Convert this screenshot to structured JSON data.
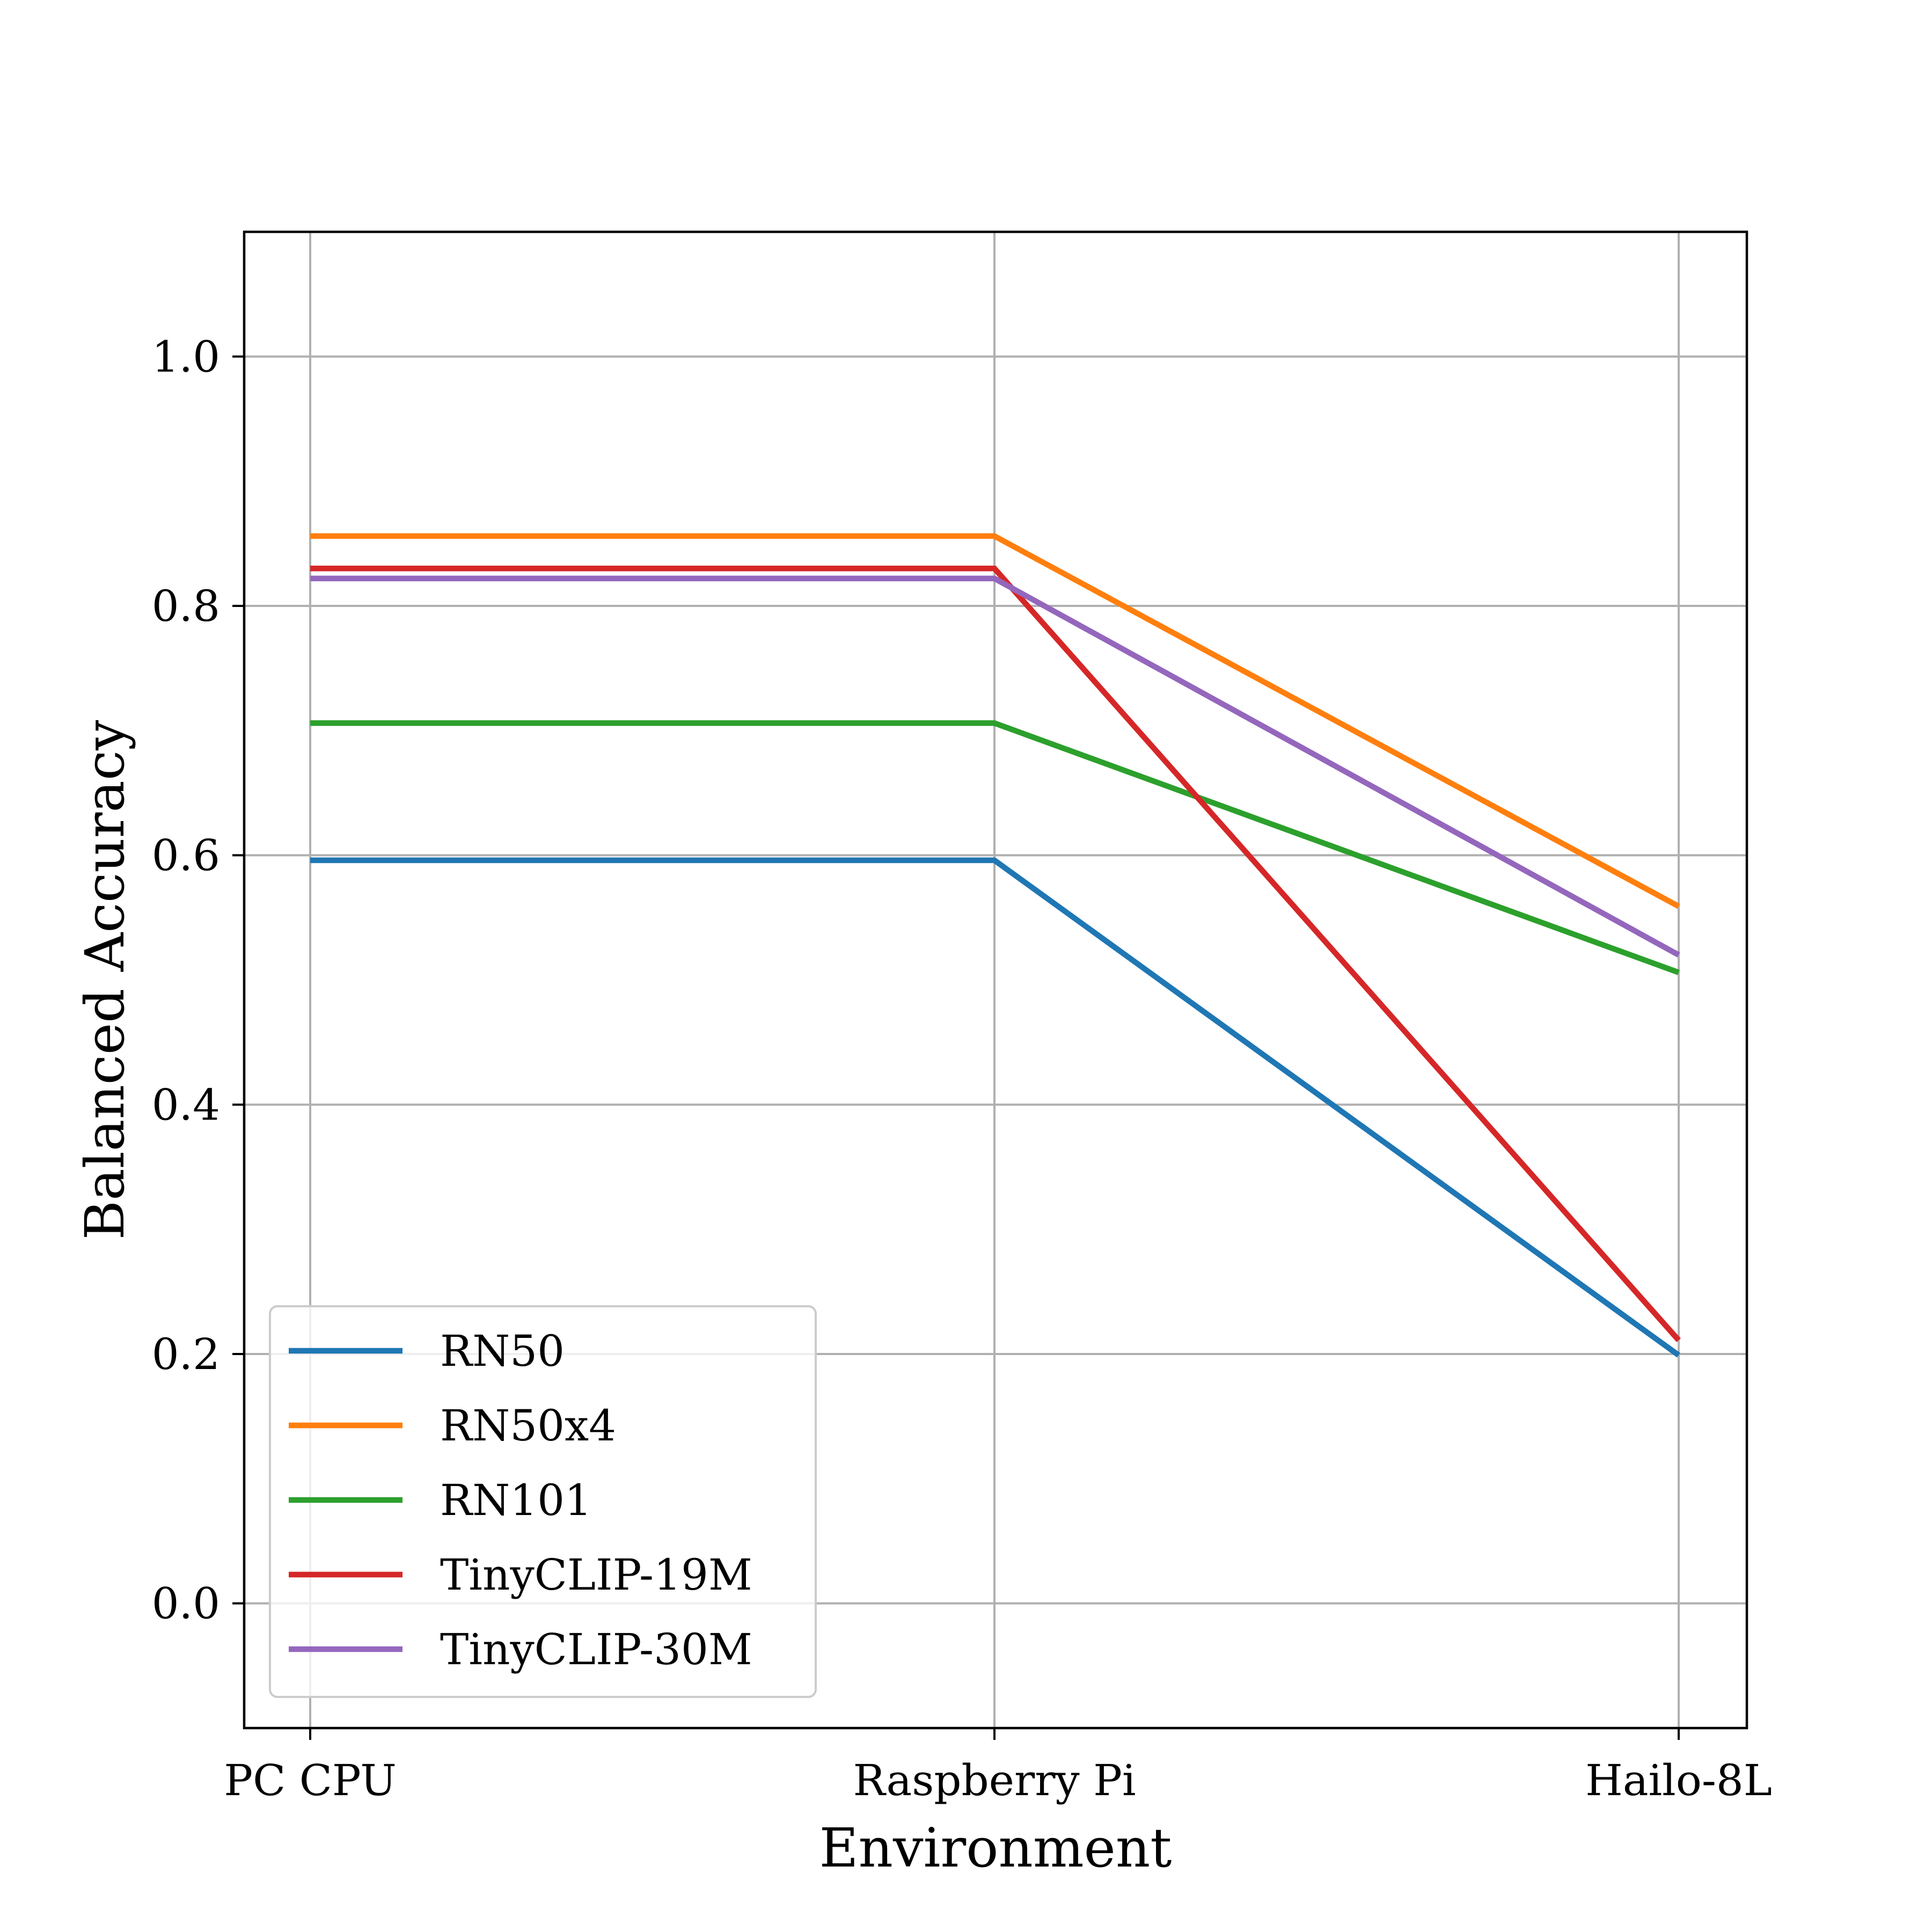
{
  "chart_data": {
    "type": "line",
    "title": "",
    "xlabel": "Environment",
    "ylabel": "Balanced Accuracy",
    "categories": [
      "PC CPU",
      "Raspberry Pi",
      "Hailo-8L"
    ],
    "ylim": [
      -0.1,
      1.1
    ],
    "yticks": [
      0.0,
      0.2,
      0.4,
      0.6,
      0.8,
      1.0
    ],
    "ytick_labels": [
      "0.0",
      "0.2",
      "0.4",
      "0.6",
      "0.8",
      "1.0"
    ],
    "grid": true,
    "legend_position": "lower-left",
    "series": [
      {
        "name": "RN50",
        "color": "#1f77b4",
        "values": [
          0.596,
          0.596,
          0.199
        ]
      },
      {
        "name": "RN50x4",
        "color": "#ff7f0e",
        "values": [
          0.856,
          0.856,
          0.559
        ]
      },
      {
        "name": "RN101",
        "color": "#2ca02c",
        "values": [
          0.706,
          0.706,
          0.506
        ]
      },
      {
        "name": "TinyCLIP-19M",
        "color": "#d62728",
        "values": [
          0.83,
          0.83,
          0.211
        ]
      },
      {
        "name": "TinyCLIP-30M",
        "color": "#9467bd",
        "values": [
          0.822,
          0.822,
          0.52
        ]
      }
    ]
  }
}
